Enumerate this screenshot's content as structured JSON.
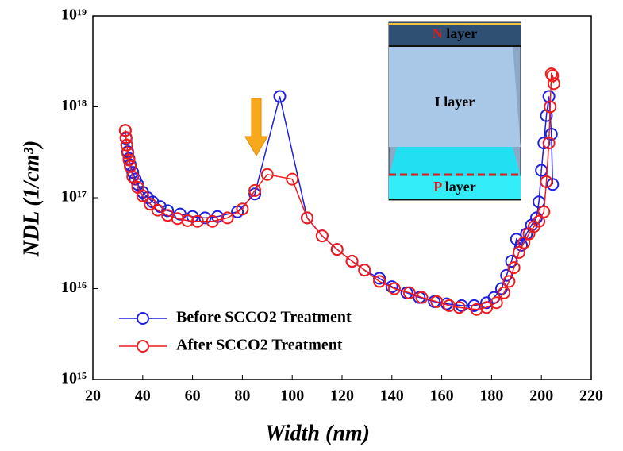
{
  "chart_data": {
    "type": "line",
    "xlabel": "Width (nm)",
    "ylabel": "NDL (1/cm³)",
    "xlim": [
      20,
      220
    ],
    "xticks": [
      20,
      40,
      60,
      80,
      100,
      120,
      140,
      160,
      180,
      200,
      220
    ],
    "ylim": [
      1000000000000000.0,
      1e+19
    ],
    "log_y": true,
    "yticks": [
      {
        "value": 1000000000000000.0,
        "label": "10¹⁵"
      },
      {
        "value": 1e+16,
        "label": "10¹⁶"
      },
      {
        "value": 1e+17,
        "label": "10¹⁷"
      },
      {
        "value": 1e+18,
        "label": "10¹⁸"
      },
      {
        "value": 1e+19,
        "label": "10¹⁹"
      }
    ],
    "legend": "lower left",
    "series": [
      {
        "name": "Before SCCO2 Treatment",
        "color": "#1f1fe0",
        "x": [
          33,
          33.3,
          33.6,
          34,
          34.5,
          35,
          36,
          37,
          38,
          40,
          42,
          44,
          47,
          50,
          55,
          60,
          65,
          70,
          78,
          85,
          95,
          106,
          112,
          118,
          124,
          129,
          135,
          140,
          146,
          151,
          157,
          162,
          168,
          173,
          178,
          181,
          184,
          186,
          188,
          190,
          192,
          194,
          196,
          198,
          199,
          200,
          201,
          202,
          203,
          204,
          204.5
        ],
        "values": [
          5.5e+17,
          4.5e+17,
          3.8e+17,
          3.2e+17,
          2.7e+17,
          2.3e+17,
          1.9e+17,
          1.6e+17,
          1.4e+17,
          1.15e+17,
          1e+17,
          9e+16,
          8e+16,
          7.2e+16,
          6.6e+16,
          6.2e+16,
          6e+16,
          6.2e+16,
          7e+16,
          1.1e+17,
          1.3e+18,
          6e+16,
          3.8e+16,
          2.7e+16,
          2e+16,
          1.6e+16,
          1.3e+16,
          1.05e+16,
          9000000000000000.0,
          8000000000000000.0,
          7200000000000000.0,
          6800000000000000.0,
          6500000000000000.0,
          6500000000000000.0,
          7000000000000000.0,
          8000000000000000.0,
          1e+16,
          1.4e+16,
          2e+16,
          3.5e+16,
          3e+16,
          4e+16,
          5e+16,
          6e+16,
          9e+16,
          2e+17,
          4e+17,
          8e+17,
          1.3e+18,
          5e+17,
          1.4e+17
        ]
      },
      {
        "name": "After SCCO2 Treatment",
        "color": "#ee1c1c",
        "x": [
          33,
          33.3,
          33.6,
          34,
          34.5,
          35,
          36,
          38,
          40,
          43,
          46,
          50,
          54,
          58,
          62,
          68,
          74,
          80,
          85,
          90,
          100,
          106,
          112,
          118,
          124,
          129,
          135,
          141,
          147,
          152,
          158,
          163,
          167,
          174,
          178,
          182,
          185,
          187,
          189,
          191,
          193,
          195,
          197,
          199,
          201,
          202,
          203,
          203.5,
          204,
          204.5,
          205
        ],
        "values": [
          5.5e+17,
          4.6e+17,
          3.8e+17,
          3.1e+17,
          2.6e+17,
          2.2e+17,
          1.7e+17,
          1.3e+17,
          1.05e+17,
          8.5e+16,
          7.3e+16,
          6.4e+16,
          5.9e+16,
          5.6e+16,
          5.5e+16,
          5.5e+16,
          6e+16,
          7.5e+16,
          1.2e+17,
          1.8e+17,
          1.6e+17,
          6e+16,
          3.8e+16,
          2.7e+16,
          2e+16,
          1.6e+16,
          1.2e+16,
          1e+16,
          9000000000000000.0,
          8000000000000000.0,
          7200000000000000.0,
          6500000000000000.0,
          6200000000000000.0,
          5900000000000000.0,
          6200000000000000.0,
          7000000000000000.0,
          9000000000000000.0,
          1.2e+16,
          1.7e+16,
          2.5e+16,
          3.2e+16,
          4e+16,
          4.8e+16,
          5.5e+16,
          7e+16,
          1.5e+17,
          4e+17,
          1e+18,
          2.3e+18,
          2.2e+18,
          1.8e+18
        ]
      }
    ],
    "inset": {
      "top_letter": "N",
      "top_word": "layer",
      "middle_label": "I layer",
      "bottom_letter": "P",
      "bottom_word": "layer"
    }
  }
}
